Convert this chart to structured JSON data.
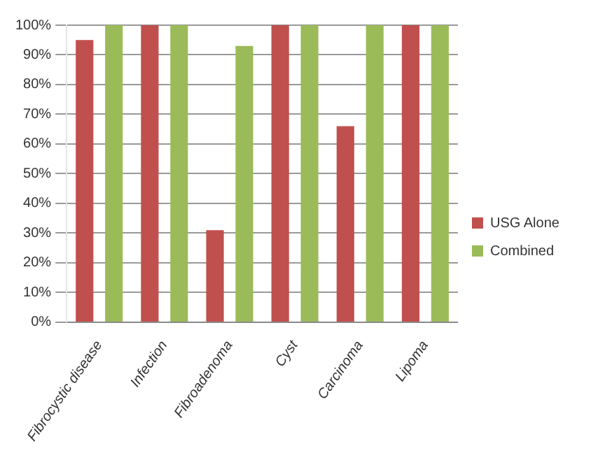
{
  "chart_data": {
    "type": "bar",
    "categories": [
      "Fibrocystic disease",
      "Infection",
      "Fibroadenoma",
      "Cyst",
      "Carcinoma",
      "Lipoma"
    ],
    "series": [
      {
        "name": "USG Alone",
        "color": "#c0504d",
        "values": [
          95,
          100,
          31,
          100,
          66,
          100
        ]
      },
      {
        "name": "Combined",
        "color": "#9bbb59",
        "values": [
          100,
          100,
          93,
          100,
          100,
          100
        ]
      }
    ],
    "ylim": [
      0,
      100
    ],
    "yticks": [
      {
        "value": 0,
        "label": "0%"
      },
      {
        "value": 10,
        "label": "10%"
      },
      {
        "value": 20,
        "label": "20%"
      },
      {
        "value": 30,
        "label": "30%"
      },
      {
        "value": 40,
        "label": "40%"
      },
      {
        "value": 50,
        "label": "50%"
      },
      {
        "value": 60,
        "label": "60%"
      },
      {
        "value": 70,
        "label": "70%"
      },
      {
        "value": 80,
        "label": "80%"
      },
      {
        "value": 90,
        "label": "90%"
      },
      {
        "value": 100,
        "label": "100%"
      }
    ],
    "grid": "y",
    "legend": "right"
  }
}
